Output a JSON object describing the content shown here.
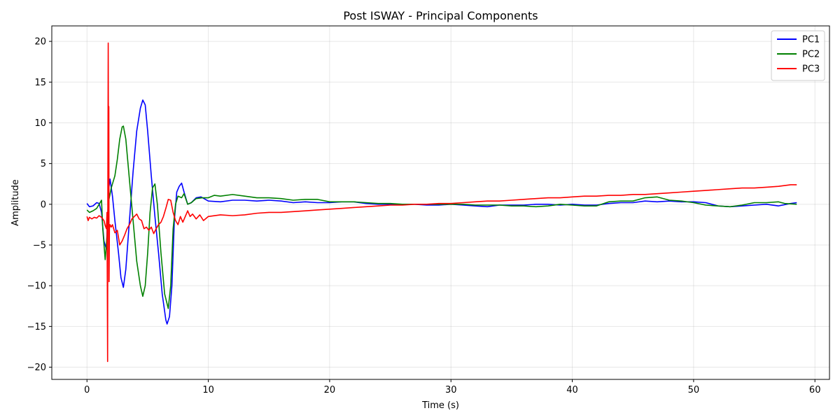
{
  "chart_data": {
    "type": "line",
    "title": "Post ISWAY - Principal Components",
    "xlabel": "Time (s)",
    "ylabel": "Amplitude",
    "xlim": [
      -2.9,
      61.2
    ],
    "ylim": [
      -21.5,
      21.9
    ],
    "xticks": [
      0,
      10,
      20,
      30,
      40,
      50,
      60
    ],
    "yticks": [
      -20,
      -15,
      -10,
      -5,
      0,
      5,
      10,
      15,
      20
    ],
    "grid": true,
    "legend_position": "top-right",
    "series": [
      {
        "name": "PC1",
        "color": "#0000ff",
        "points": [
          [
            0,
            0.1
          ],
          [
            0.2,
            -0.3
          ],
          [
            0.5,
            -0.2
          ],
          [
            0.8,
            0.2
          ],
          [
            1.0,
            0.1
          ],
          [
            1.2,
            -1.0
          ],
          [
            1.4,
            -4.5
          ],
          [
            1.6,
            -5.5
          ],
          [
            1.8,
            2.0
          ],
          [
            1.9,
            3.1
          ],
          [
            2.1,
            1.0
          ],
          [
            2.3,
            -2.0
          ],
          [
            2.6,
            -6.0
          ],
          [
            2.8,
            -9.0
          ],
          [
            3.0,
            -10.2
          ],
          [
            3.2,
            -8.0
          ],
          [
            3.5,
            -2.0
          ],
          [
            3.8,
            4.0
          ],
          [
            4.1,
            9.0
          ],
          [
            4.4,
            11.8
          ],
          [
            4.6,
            12.8
          ],
          [
            4.8,
            12.2
          ],
          [
            5.0,
            9.0
          ],
          [
            5.3,
            3.5
          ],
          [
            5.6,
            -1.5
          ],
          [
            5.9,
            -6.0
          ],
          [
            6.2,
            -11.0
          ],
          [
            6.5,
            -14.2
          ],
          [
            6.6,
            -14.7
          ],
          [
            6.8,
            -13.8
          ],
          [
            7.0,
            -10.0
          ],
          [
            7.2,
            -2.0
          ],
          [
            7.4,
            1.5
          ],
          [
            7.6,
            2.2
          ],
          [
            7.8,
            2.6
          ],
          [
            8.0,
            1.5
          ],
          [
            8.3,
            0.0
          ],
          [
            8.6,
            0.2
          ],
          [
            9.0,
            0.8
          ],
          [
            9.4,
            0.9
          ],
          [
            10,
            0.4
          ],
          [
            11,
            0.3
          ],
          [
            12,
            0.5
          ],
          [
            13,
            0.5
          ],
          [
            14,
            0.4
          ],
          [
            15,
            0.5
          ],
          [
            16,
            0.4
          ],
          [
            17,
            0.2
          ],
          [
            18,
            0.3
          ],
          [
            19,
            0.2
          ],
          [
            20,
            0.2
          ],
          [
            21,
            0.3
          ],
          [
            22,
            0.3
          ],
          [
            23,
            0.1
          ],
          [
            24,
            0.0
          ],
          [
            25,
            0.0
          ],
          [
            26,
            0.0
          ],
          [
            27,
            0.0
          ],
          [
            28,
            -0.1
          ],
          [
            29,
            -0.1
          ],
          [
            30,
            0.0
          ],
          [
            31,
            -0.1
          ],
          [
            32,
            -0.2
          ],
          [
            33,
            -0.3
          ],
          [
            34,
            -0.1
          ],
          [
            35,
            -0.1
          ],
          [
            36,
            -0.1
          ],
          [
            37,
            0.0
          ],
          [
            38,
            0.0
          ],
          [
            39,
            -0.1
          ],
          [
            40,
            0.0
          ],
          [
            41,
            -0.1
          ],
          [
            42,
            -0.1
          ],
          [
            43,
            0.1
          ],
          [
            44,
            0.2
          ],
          [
            45,
            0.2
          ],
          [
            46,
            0.4
          ],
          [
            47,
            0.3
          ],
          [
            48,
            0.4
          ],
          [
            49,
            0.3
          ],
          [
            50,
            0.3
          ],
          [
            51,
            0.2
          ],
          [
            52,
            -0.2
          ],
          [
            53,
            -0.3
          ],
          [
            54,
            -0.2
          ],
          [
            55,
            -0.1
          ],
          [
            56,
            0.0
          ],
          [
            57,
            -0.2
          ],
          [
            58,
            0.1
          ],
          [
            58.5,
            0.2
          ]
        ]
      },
      {
        "name": "PC2",
        "color": "#008000",
        "points": [
          [
            0,
            -0.7
          ],
          [
            0.2,
            -1.0
          ],
          [
            0.5,
            -0.8
          ],
          [
            0.8,
            -0.5
          ],
          [
            1.0,
            0.0
          ],
          [
            1.2,
            0.5
          ],
          [
            1.3,
            -3.0
          ],
          [
            1.5,
            -6.8
          ],
          [
            1.7,
            -3.0
          ],
          [
            1.8,
            0.5
          ],
          [
            2.0,
            2.0
          ],
          [
            2.3,
            3.5
          ],
          [
            2.5,
            5.5
          ],
          [
            2.7,
            8.0
          ],
          [
            2.9,
            9.5
          ],
          [
            3.0,
            9.6
          ],
          [
            3.2,
            8.0
          ],
          [
            3.5,
            3.0
          ],
          [
            3.8,
            -2.0
          ],
          [
            4.1,
            -7.0
          ],
          [
            4.4,
            -10.0
          ],
          [
            4.6,
            -11.3
          ],
          [
            4.8,
            -10.0
          ],
          [
            5.0,
            -6.0
          ],
          [
            5.2,
            -1.0
          ],
          [
            5.4,
            2.0
          ],
          [
            5.6,
            2.5
          ],
          [
            5.8,
            0.0
          ],
          [
            6.1,
            -6.0
          ],
          [
            6.4,
            -11.0
          ],
          [
            6.7,
            -12.8
          ],
          [
            6.9,
            -10.0
          ],
          [
            7.1,
            -3.0
          ],
          [
            7.3,
            0.0
          ],
          [
            7.5,
            1.0
          ],
          [
            7.8,
            0.8
          ],
          [
            8.0,
            1.3
          ],
          [
            8.3,
            0.0
          ],
          [
            8.6,
            0.2
          ],
          [
            9.0,
            0.7
          ],
          [
            9.5,
            0.8
          ],
          [
            10,
            0.8
          ],
          [
            10.5,
            1.1
          ],
          [
            11,
            1.0
          ],
          [
            12,
            1.2
          ],
          [
            13,
            1.0
          ],
          [
            14,
            0.8
          ],
          [
            15,
            0.8
          ],
          [
            16,
            0.7
          ],
          [
            17,
            0.5
          ],
          [
            18,
            0.6
          ],
          [
            19,
            0.6
          ],
          [
            20,
            0.3
          ],
          [
            21,
            0.3
          ],
          [
            22,
            0.3
          ],
          [
            23,
            0.2
          ],
          [
            24,
            0.1
          ],
          [
            25,
            0.1
          ],
          [
            26,
            0.0
          ],
          [
            27,
            0.0
          ],
          [
            28,
            0.0
          ],
          [
            29,
            0.0
          ],
          [
            30,
            0.0
          ],
          [
            31,
            0.0
          ],
          [
            32,
            -0.1
          ],
          [
            33,
            -0.1
          ],
          [
            34,
            -0.1
          ],
          [
            35,
            -0.2
          ],
          [
            36,
            -0.2
          ],
          [
            37,
            -0.3
          ],
          [
            38,
            -0.2
          ],
          [
            39,
            0.0
          ],
          [
            40,
            -0.1
          ],
          [
            41,
            -0.2
          ],
          [
            42,
            -0.2
          ],
          [
            43,
            0.3
          ],
          [
            44,
            0.4
          ],
          [
            45,
            0.4
          ],
          [
            46,
            0.8
          ],
          [
            47,
            0.9
          ],
          [
            48,
            0.5
          ],
          [
            49,
            0.4
          ],
          [
            50,
            0.2
          ],
          [
            51,
            -0.1
          ],
          [
            52,
            -0.2
          ],
          [
            53,
            -0.3
          ],
          [
            54,
            -0.1
          ],
          [
            55,
            0.2
          ],
          [
            56,
            0.2
          ],
          [
            57,
            0.3
          ],
          [
            57.5,
            0.1
          ],
          [
            58.5,
            0.0
          ]
        ]
      },
      {
        "name": "PC3",
        "color": "#ff0000",
        "points": [
          [
            0,
            -1.5
          ],
          [
            0.1,
            -2.0
          ],
          [
            0.2,
            -1.6
          ],
          [
            0.4,
            -1.8
          ],
          [
            0.6,
            -1.6
          ],
          [
            0.8,
            -1.7
          ],
          [
            1.0,
            -1.4
          ],
          [
            1.2,
            -1.6
          ],
          [
            1.4,
            -2.0
          ],
          [
            1.5,
            -2.6
          ],
          [
            1.6,
            -3.0
          ],
          [
            1.65,
            -1.0
          ],
          [
            1.7,
            -19.3
          ],
          [
            1.72,
            2.0
          ],
          [
            1.75,
            19.8
          ],
          [
            1.78,
            0.0
          ],
          [
            1.8,
            12.0
          ],
          [
            1.82,
            -9.5
          ],
          [
            1.85,
            -3.0
          ],
          [
            1.9,
            -2.5
          ],
          [
            2.0,
            -2.8
          ],
          [
            2.1,
            -2.5
          ],
          [
            2.2,
            -3.0
          ],
          [
            2.3,
            -3.5
          ],
          [
            2.5,
            -3.2
          ],
          [
            2.7,
            -5.0
          ],
          [
            2.9,
            -4.5
          ],
          [
            3.1,
            -3.8
          ],
          [
            3.3,
            -3.0
          ],
          [
            3.5,
            -2.5
          ],
          [
            3.7,
            -1.8
          ],
          [
            3.9,
            -1.5
          ],
          [
            4.1,
            -1.2
          ],
          [
            4.3,
            -1.8
          ],
          [
            4.5,
            -2.0
          ],
          [
            4.7,
            -3.0
          ],
          [
            4.9,
            -2.8
          ],
          [
            5.1,
            -3.2
          ],
          [
            5.3,
            -2.8
          ],
          [
            5.5,
            -3.6
          ],
          [
            5.7,
            -3.0
          ],
          [
            5.9,
            -2.5
          ],
          [
            6.1,
            -2.2
          ],
          [
            6.3,
            -1.5
          ],
          [
            6.5,
            -0.5
          ],
          [
            6.7,
            0.6
          ],
          [
            6.9,
            0.5
          ],
          [
            7.1,
            -1.0
          ],
          [
            7.3,
            -2.0
          ],
          [
            7.5,
            -2.5
          ],
          [
            7.7,
            -1.5
          ],
          [
            7.9,
            -2.2
          ],
          [
            8.1,
            -1.5
          ],
          [
            8.3,
            -0.8
          ],
          [
            8.5,
            -1.5
          ],
          [
            8.7,
            -1.2
          ],
          [
            9.0,
            -1.8
          ],
          [
            9.3,
            -1.3
          ],
          [
            9.6,
            -2.0
          ],
          [
            10,
            -1.5
          ],
          [
            11,
            -1.3
          ],
          [
            12,
            -1.4
          ],
          [
            13,
            -1.3
          ],
          [
            14,
            -1.1
          ],
          [
            15,
            -1.0
          ],
          [
            16,
            -1.0
          ],
          [
            17,
            -0.9
          ],
          [
            18,
            -0.8
          ],
          [
            19,
            -0.7
          ],
          [
            20,
            -0.6
          ],
          [
            21,
            -0.5
          ],
          [
            22,
            -0.4
          ],
          [
            23,
            -0.3
          ],
          [
            24,
            -0.2
          ],
          [
            25,
            -0.1
          ],
          [
            26,
            -0.1
          ],
          [
            27,
            0.0
          ],
          [
            28,
            0.0
          ],
          [
            29,
            0.1
          ],
          [
            30,
            0.1
          ],
          [
            31,
            0.2
          ],
          [
            32,
            0.3
          ],
          [
            33,
            0.4
          ],
          [
            34,
            0.4
          ],
          [
            35,
            0.5
          ],
          [
            36,
            0.6
          ],
          [
            37,
            0.7
          ],
          [
            38,
            0.8
          ],
          [
            39,
            0.8
          ],
          [
            40,
            0.9
          ],
          [
            41,
            1.0
          ],
          [
            42,
            1.0
          ],
          [
            43,
            1.1
          ],
          [
            44,
            1.1
          ],
          [
            45,
            1.2
          ],
          [
            46,
            1.2
          ],
          [
            47,
            1.3
          ],
          [
            48,
            1.4
          ],
          [
            49,
            1.5
          ],
          [
            50,
            1.6
          ],
          [
            51,
            1.7
          ],
          [
            52,
            1.8
          ],
          [
            53,
            1.9
          ],
          [
            54,
            2.0
          ],
          [
            55,
            2.0
          ],
          [
            56,
            2.1
          ],
          [
            57,
            2.2
          ],
          [
            58,
            2.4
          ],
          [
            58.5,
            2.4
          ]
        ]
      }
    ]
  }
}
